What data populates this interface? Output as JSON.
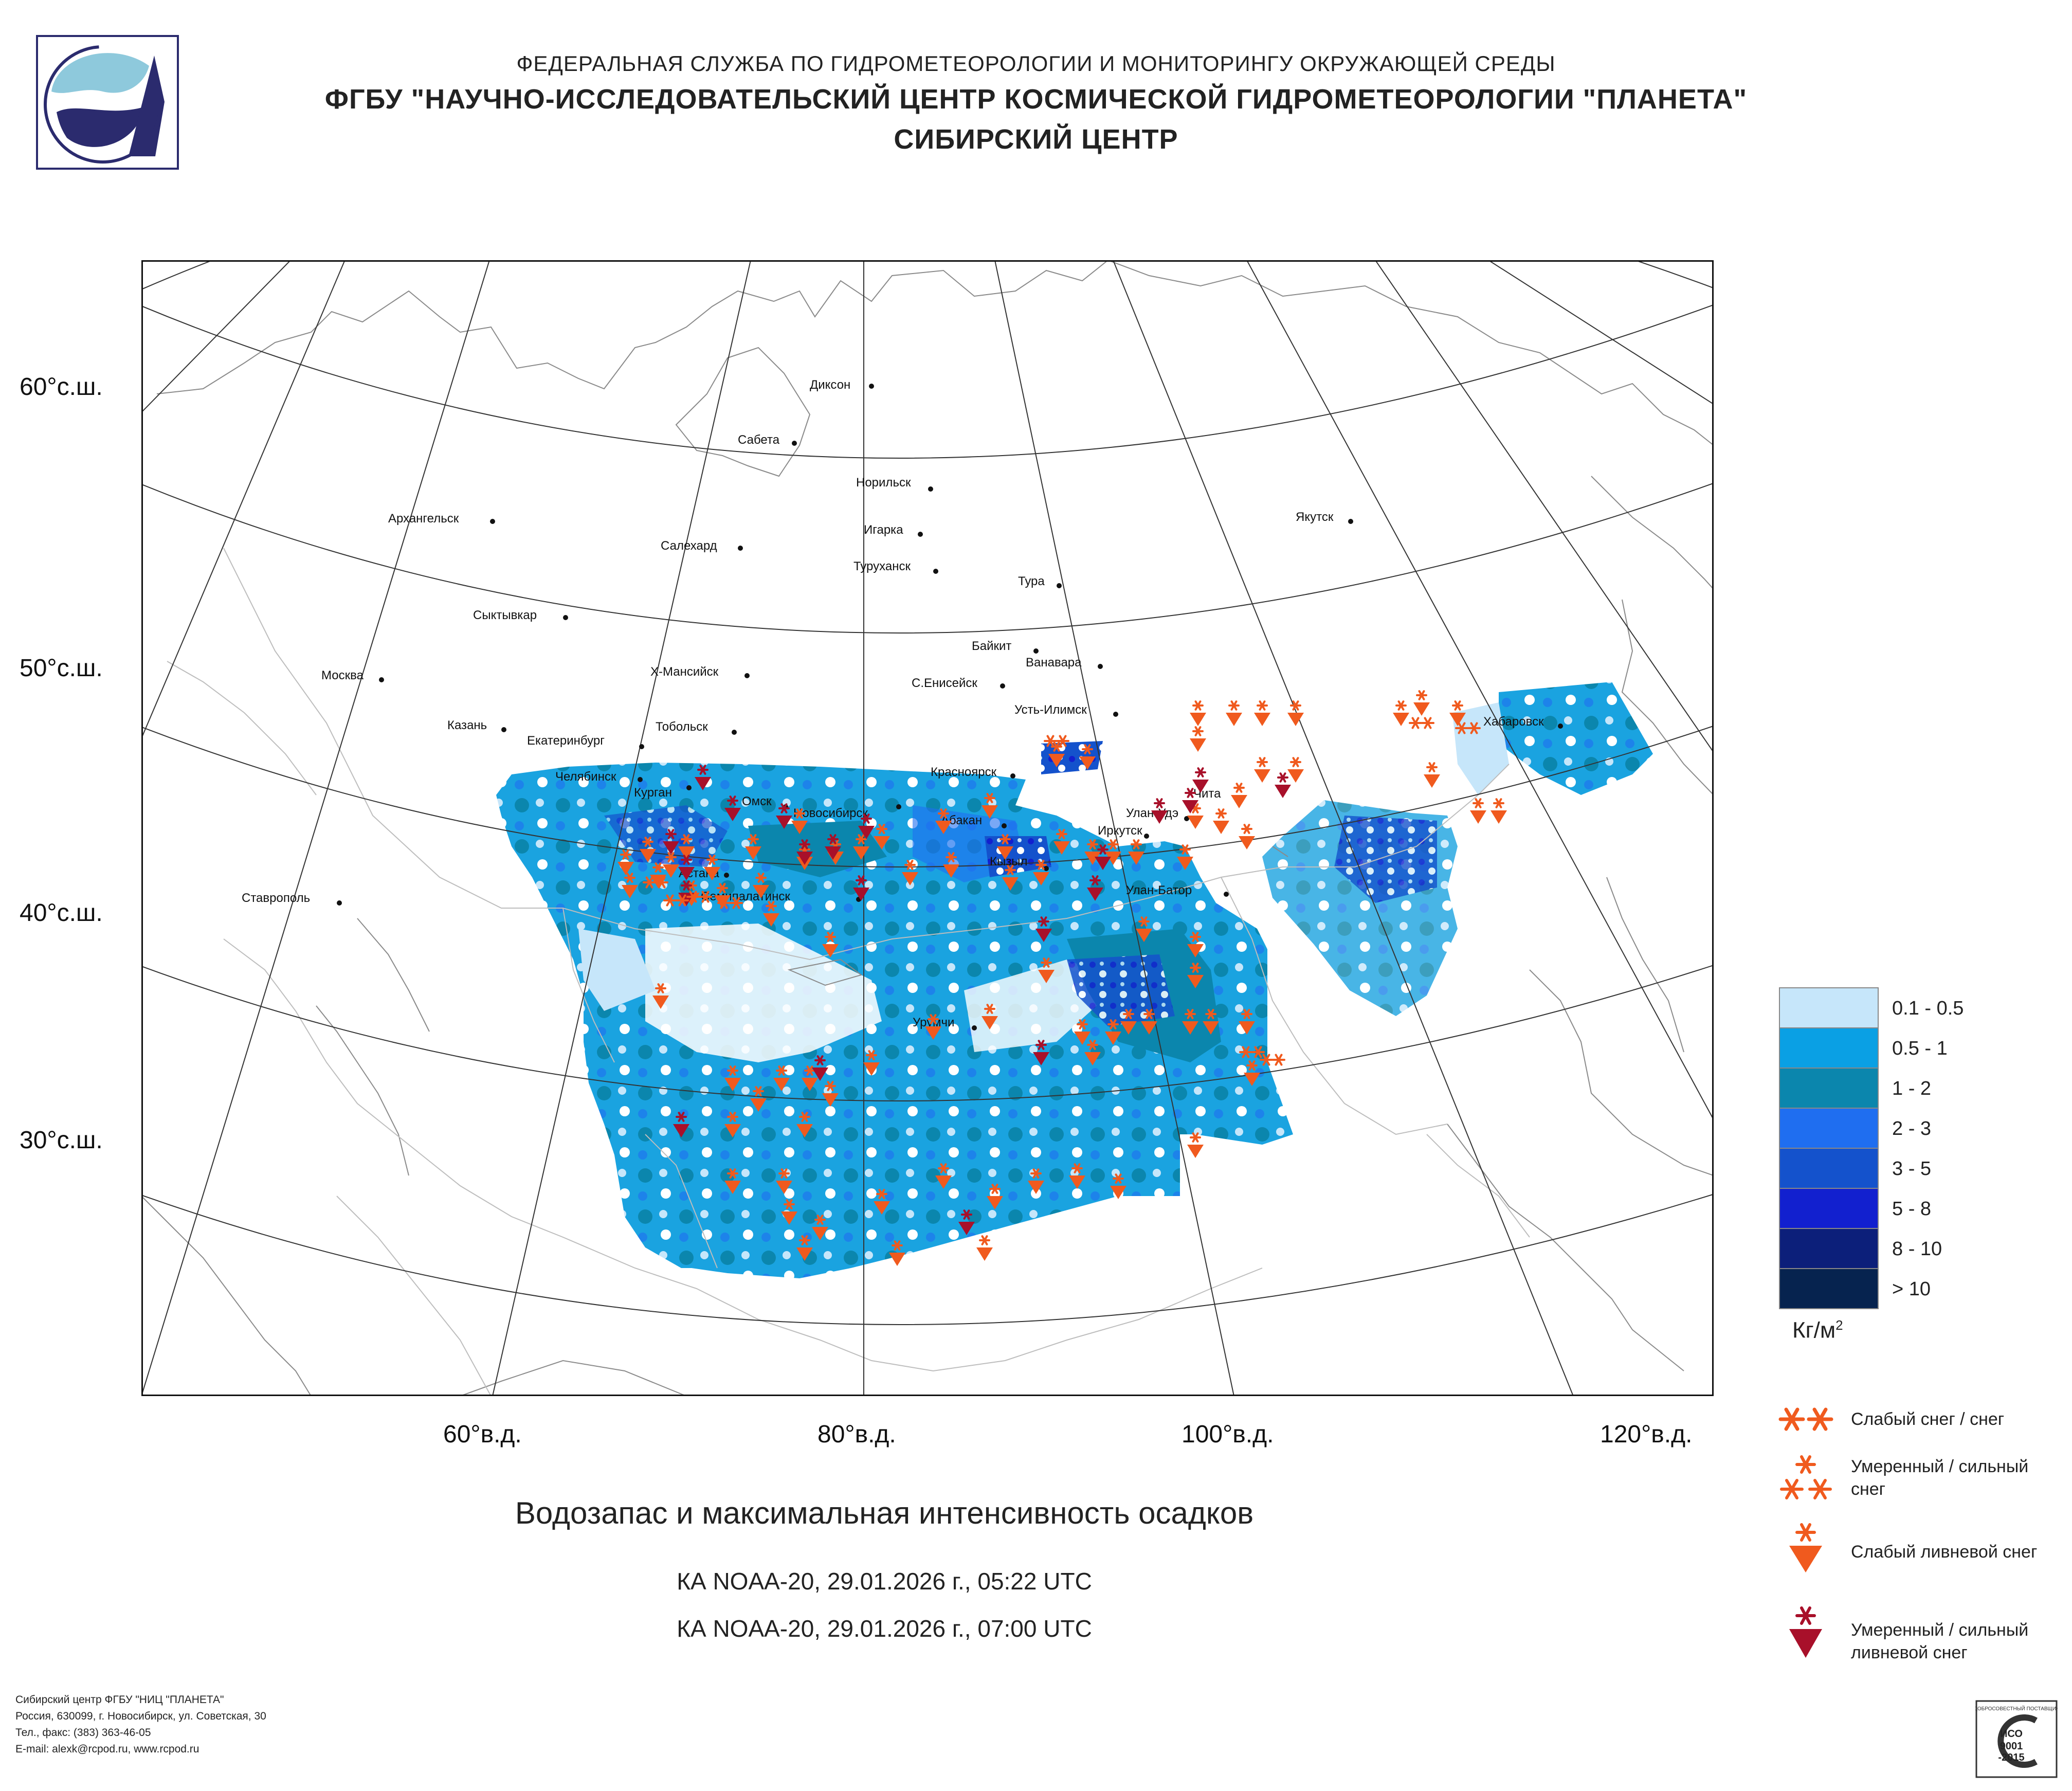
{
  "header": {
    "line1": "ФЕДЕРАЛЬНАЯ СЛУЖБА ПО ГИДРОМЕТЕОРОЛОГИИ И МОНИТОРИНГУ ОКРУЖАЮЩЕЙ СРЕДЫ",
    "line2": "ФГБУ \"НАУЧНО-ИССЛЕДОВАТЕЛЬСКИЙ ЦЕНТР КОСМИЧЕСКОЙ ГИДРОМЕТЕОРОЛОГИИ \"ПЛАНЕТА\"",
    "line3": "СИБИРСКИЙ ЦЕНТР"
  },
  "map": {
    "lat_labels": [
      "60°с.ш.",
      "50°с.ш.",
      "40°с.ш.",
      "30°с.ш."
    ],
    "lon_labels": [
      "60°в.д.",
      "80°в.д.",
      "100°в.д.",
      "120°в.д."
    ],
    "cities": [
      "Диксон",
      "Сабета",
      "Норильск",
      "Архангельск",
      "Игарка",
      "Салехард",
      "Туруханск",
      "Якутск",
      "Тура",
      "Сыктывкар",
      "Байкит",
      "Ванавара",
      "Москва",
      "Х-Мансийск",
      "С.Енисейск",
      "Усть-Илимск",
      "Казань",
      "Тобольск",
      "Хабаровск",
      "Екатеринбург",
      "Челябинск",
      "Курган",
      "Красноярск",
      "Омск",
      "Новосибирск",
      "Чита",
      "Улан-Удэ",
      "Абакан",
      "Иркутск",
      "Кызыл",
      "Астана",
      "Улан-Батор",
      "Семипалатинск",
      "Ставрополь",
      "Урумчи"
    ],
    "water_colors": {
      "land": "#ffffff",
      "border": "#b0b0b0",
      "coast": "#888888"
    }
  },
  "legend": {
    "bins": [
      {
        "label": "0.1 - 0.5",
        "color": "#c6e6fa"
      },
      {
        "label": "0.5 - 1",
        "color": "#0aa0e4"
      },
      {
        "label": "1 - 2",
        "color": "#0b86ad"
      },
      {
        "label": "2 - 3",
        "color": "#1f6ef0"
      },
      {
        "label": "3 - 5",
        "color": "#1452cc"
      },
      {
        "label": "5 - 8",
        "color": "#1220cf"
      },
      {
        "label": "8 - 10",
        "color": "#0c1f7a"
      },
      {
        "label": "> 10",
        "color": "#06234f"
      }
    ],
    "unit": "Кг/м",
    "unit_sup": "2",
    "symbols": [
      {
        "label": "Слабый снег / снег",
        "color": "#f05a1e"
      },
      {
        "label": "Умеренный / сильный снег",
        "color": "#f05a1e"
      },
      {
        "label": "Слабый ливневой снег",
        "color": "#f05a1e"
      },
      {
        "label": "Умеренный / сильный ливневой снег",
        "color": "#a8102a"
      }
    ]
  },
  "title": "Водозапас и максимальная интенсивность осадков",
  "passes": [
    "КА NOAA-20, 29.01.2026 г., 05:22 UTC",
    "КА NOAA-20, 29.01.2026 г., 07:00 UTC"
  ],
  "footer": [
    "Сибирский центр ФГБУ \"НИЦ \"ПЛАНЕТА\"",
    "Россия, 630099, г. Новосибирск, ул. Советская, 30",
    "Тел., факс: (383) 363-46-05",
    "E-mail: alexk@rcpod.ru, www.rcpod.ru"
  ],
  "iso": {
    "top": "ДОБРОСОВЕСТНЫЙ ПОСТАВЩИК",
    "l1": "ИСО",
    "l2": "9001",
    "l3": "-2015"
  }
}
